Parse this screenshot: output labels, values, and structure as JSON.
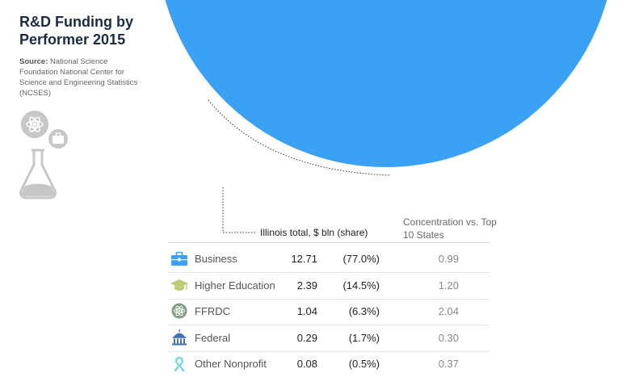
{
  "title": "R&D Funding by Performer 2015",
  "source_label": "Source:",
  "source_text": "National Science Foundation National Center for Science and Engineering Statistics (NCSES)",
  "chart_data": {
    "type": "pie",
    "value_header": "Illinois total, $ bln (share)",
    "concentration_header": "Concentration vs. Top 10 States",
    "categories": [
      "Business",
      "Higher Education",
      "FFRDC",
      "Federal",
      "Other Nonprofit"
    ],
    "values": [
      12.71,
      2.39,
      1.04,
      0.29,
      0.08
    ],
    "shares": [
      "(77.0%)",
      "(14.5%)",
      "(6.3%)",
      "(1.7%)",
      "(0.5%)"
    ],
    "value_labels": [
      "12.71",
      "2.39",
      "1.04",
      "0.29",
      "0.08"
    ],
    "concentration": [
      "0.99",
      "1.20",
      "2.04",
      "0.30",
      "0.37"
    ],
    "colors": [
      "#3ba1f4",
      "#bccd71",
      "#839f85",
      "#4472b4",
      "#7fd8d8"
    ],
    "icons": [
      "briefcase-icon",
      "graduation-cap-icon",
      "atom-icon",
      "federal-building-icon",
      "ribbon-icon"
    ],
    "start_angle_deg": 180,
    "clockwise": false,
    "grid": false
  }
}
